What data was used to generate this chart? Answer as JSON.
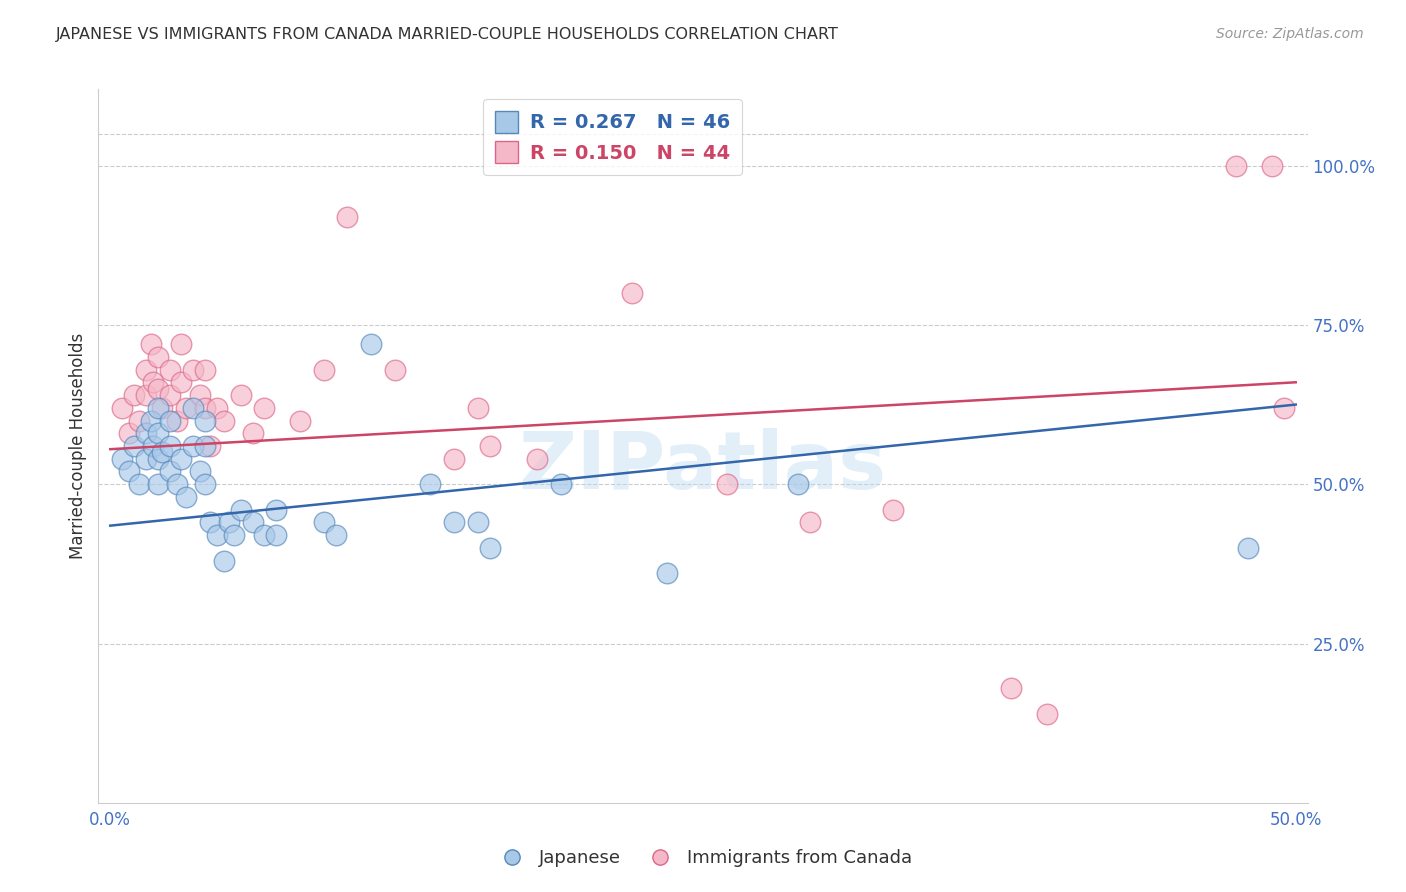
{
  "title": "JAPANESE VS IMMIGRANTS FROM CANADA MARRIED-COUPLE HOUSEHOLDS CORRELATION CHART",
  "source": "Source: ZipAtlas.com",
  "ylabel": "Married-couple Households",
  "x_tick_labels": [
    "0.0%",
    "",
    "",
    "",
    "",
    "50.0%"
  ],
  "x_tick_values": [
    0,
    0.1,
    0.2,
    0.3,
    0.4,
    0.5
  ],
  "y_tick_labels": [
    "100.0%",
    "75.0%",
    "50.0%",
    "25.0%"
  ],
  "y_tick_values": [
    1.0,
    0.75,
    0.5,
    0.25
  ],
  "xlim": [
    -0.005,
    0.505
  ],
  "ylim": [
    0.0,
    1.12
  ],
  "legend_blue_R": "0.267",
  "legend_blue_N": "46",
  "legend_pink_R": "0.150",
  "legend_pink_N": "44",
  "blue_fill": "#a8c8e8",
  "pink_fill": "#f4b8c8",
  "blue_edge": "#5588bb",
  "pink_edge": "#dd6688",
  "blue_line_color": "#3366aa",
  "pink_line_color": "#cc4466",
  "blue_scatter": [
    [
      0.005,
      0.54
    ],
    [
      0.008,
      0.52
    ],
    [
      0.01,
      0.56
    ],
    [
      0.012,
      0.5
    ],
    [
      0.015,
      0.58
    ],
    [
      0.015,
      0.54
    ],
    [
      0.017,
      0.6
    ],
    [
      0.018,
      0.56
    ],
    [
      0.02,
      0.62
    ],
    [
      0.02,
      0.58
    ],
    [
      0.02,
      0.54
    ],
    [
      0.02,
      0.5
    ],
    [
      0.022,
      0.55
    ],
    [
      0.025,
      0.6
    ],
    [
      0.025,
      0.56
    ],
    [
      0.025,
      0.52
    ],
    [
      0.028,
      0.5
    ],
    [
      0.03,
      0.54
    ],
    [
      0.032,
      0.48
    ],
    [
      0.035,
      0.62
    ],
    [
      0.035,
      0.56
    ],
    [
      0.038,
      0.52
    ],
    [
      0.04,
      0.6
    ],
    [
      0.04,
      0.56
    ],
    [
      0.04,
      0.5
    ],
    [
      0.042,
      0.44
    ],
    [
      0.045,
      0.42
    ],
    [
      0.048,
      0.38
    ],
    [
      0.05,
      0.44
    ],
    [
      0.052,
      0.42
    ],
    [
      0.055,
      0.46
    ],
    [
      0.06,
      0.44
    ],
    [
      0.065,
      0.42
    ],
    [
      0.07,
      0.46
    ],
    [
      0.07,
      0.42
    ],
    [
      0.09,
      0.44
    ],
    [
      0.095,
      0.42
    ],
    [
      0.11,
      0.72
    ],
    [
      0.135,
      0.5
    ],
    [
      0.145,
      0.44
    ],
    [
      0.155,
      0.44
    ],
    [
      0.16,
      0.4
    ],
    [
      0.19,
      0.5
    ],
    [
      0.235,
      0.36
    ],
    [
      0.29,
      0.5
    ],
    [
      0.48,
      0.4
    ]
  ],
  "pink_scatter": [
    [
      0.005,
      0.62
    ],
    [
      0.008,
      0.58
    ],
    [
      0.01,
      0.64
    ],
    [
      0.012,
      0.6
    ],
    [
      0.015,
      0.68
    ],
    [
      0.015,
      0.64
    ],
    [
      0.017,
      0.72
    ],
    [
      0.018,
      0.66
    ],
    [
      0.02,
      0.7
    ],
    [
      0.02,
      0.65
    ],
    [
      0.022,
      0.62
    ],
    [
      0.025,
      0.68
    ],
    [
      0.025,
      0.64
    ],
    [
      0.028,
      0.6
    ],
    [
      0.03,
      0.72
    ],
    [
      0.03,
      0.66
    ],
    [
      0.032,
      0.62
    ],
    [
      0.035,
      0.68
    ],
    [
      0.038,
      0.64
    ],
    [
      0.04,
      0.68
    ],
    [
      0.04,
      0.62
    ],
    [
      0.042,
      0.56
    ],
    [
      0.045,
      0.62
    ],
    [
      0.048,
      0.6
    ],
    [
      0.055,
      0.64
    ],
    [
      0.06,
      0.58
    ],
    [
      0.065,
      0.62
    ],
    [
      0.08,
      0.6
    ],
    [
      0.09,
      0.68
    ],
    [
      0.1,
      0.92
    ],
    [
      0.12,
      0.68
    ],
    [
      0.145,
      0.54
    ],
    [
      0.155,
      0.62
    ],
    [
      0.16,
      0.56
    ],
    [
      0.18,
      0.54
    ],
    [
      0.22,
      0.8
    ],
    [
      0.26,
      0.5
    ],
    [
      0.295,
      0.44
    ],
    [
      0.33,
      0.46
    ],
    [
      0.38,
      0.18
    ],
    [
      0.395,
      0.14
    ],
    [
      0.475,
      1.0
    ],
    [
      0.49,
      1.0
    ],
    [
      0.495,
      0.62
    ]
  ],
  "blue_line_x": [
    0.0,
    0.5
  ],
  "blue_line_y": [
    0.435,
    0.625
  ],
  "pink_line_x": [
    0.0,
    0.5
  ],
  "pink_line_y": [
    0.555,
    0.66
  ],
  "watermark": "ZIPatlas",
  "background_color": "#ffffff",
  "grid_color": "#cccccc",
  "title_color": "#333333",
  "tick_label_color": "#4472c4"
}
